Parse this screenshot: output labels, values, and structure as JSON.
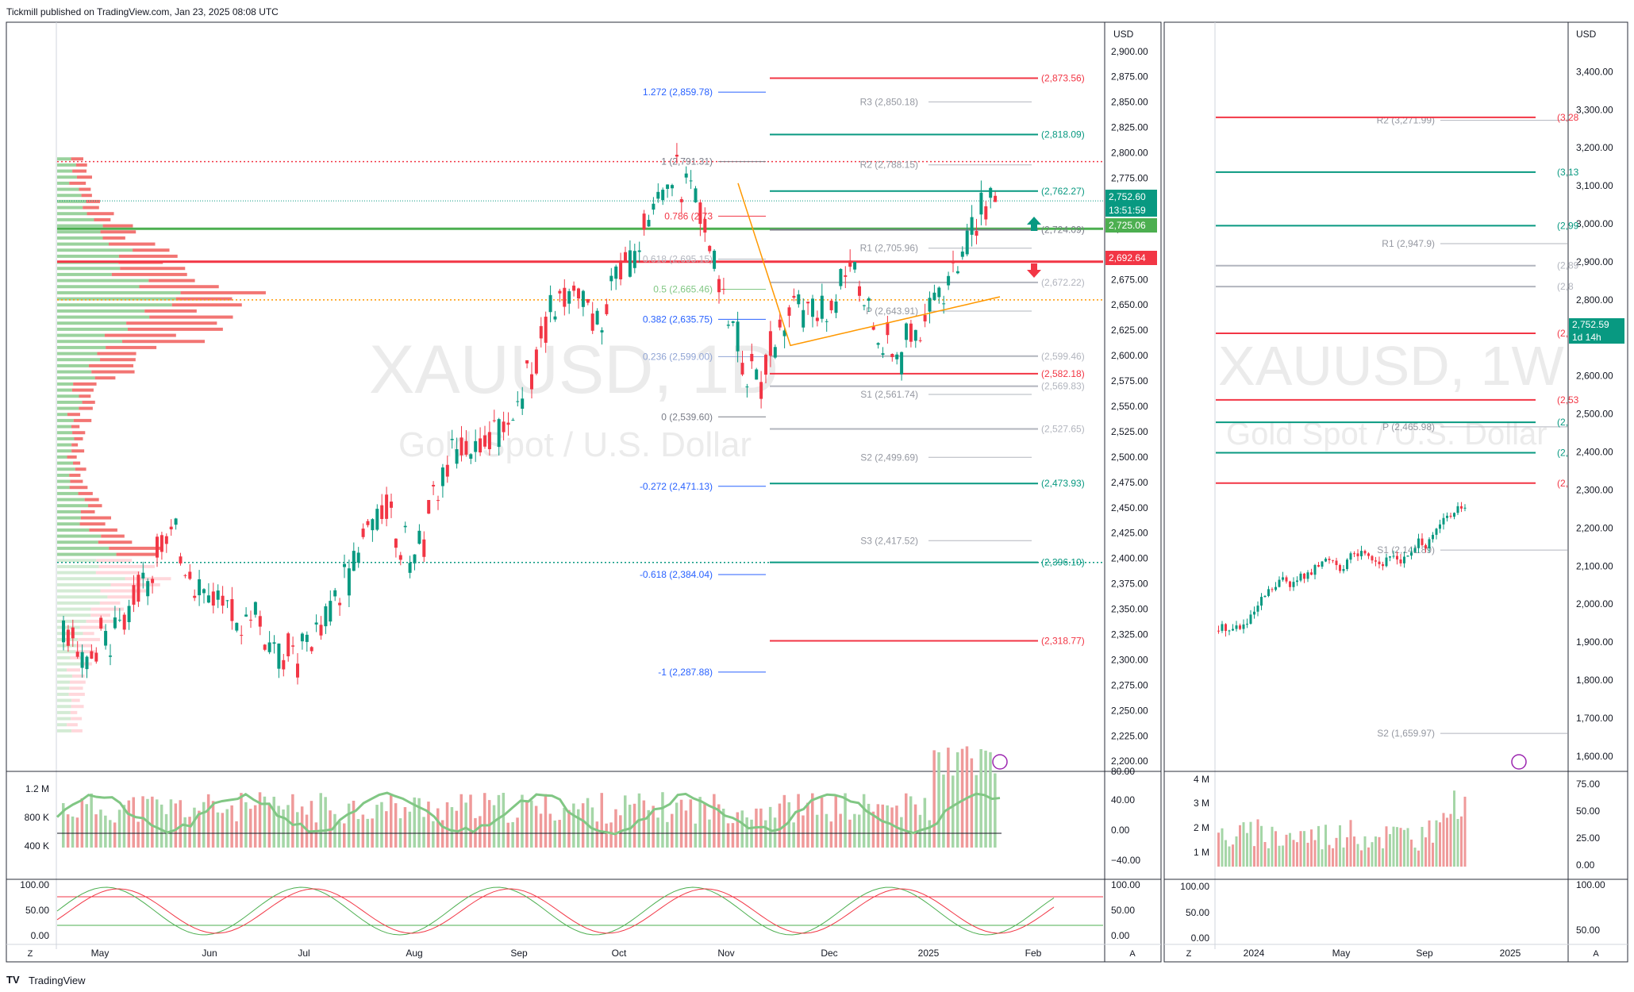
{
  "header": {
    "published_text": "Tickmill published on TradingView.com, Jan 23, 2025 08:08 UTC"
  },
  "footer": {
    "brand": "TradingView"
  },
  "panes": {
    "left": {
      "currency": "USD",
      "watermark_symbol": "XAUUSD, 1D",
      "watermark_name": "Gold Spot / U.S. Dollar",
      "price_ticks": [
        "2,900.00",
        "2,875.00",
        "2,850.00",
        "2,825.00",
        "2,800.00",
        "2,775.00",
        "2,750.00",
        "2,725.00",
        "2,700.00",
        "2,675.00",
        "2,650.00",
        "2,625.00",
        "2,600.00",
        "2,575.00",
        "2,550.00",
        "2,525.00",
        "2,500.00",
        "2,475.00",
        "2,450.00",
        "2,425.00",
        "2,400.00",
        "2,375.00",
        "2,350.00",
        "2,325.00",
        "2,300.00",
        "2,275.00",
        "2,250.00",
        "2,225.00",
        "2,200.00"
      ],
      "last_price": "2,752.60",
      "countdown": "13:51:59",
      "green_line_price": "2,725.06",
      "red_line_price": "2,692.64",
      "fib_levels": [
        {
          "label": "1.272 (2,859.78)",
          "price": 2859.78,
          "color": "#2962ff"
        },
        {
          "label": "1 (2,791.31)",
          "price": 2791.31,
          "color": "#787b86"
        },
        {
          "label": "0.786 (2,73",
          "price": 2737.5,
          "color": "#f23645"
        },
        {
          "label": "0.618 (2,695.15)",
          "price": 2695.15,
          "color": "#b2b5be"
        },
        {
          "label": "0.5 (2,665.46)",
          "price": 2665.46,
          "color": "#81c784"
        },
        {
          "label": "0.382 (2,635.75)",
          "price": 2635.75,
          "color": "#2962ff"
        },
        {
          "label": "0.236 (2,599.00)",
          "price": 2599.0,
          "color": "#90a4d4"
        },
        {
          "label": "0 (2,539.60)",
          "price": 2539.6,
          "color": "#787b86"
        },
        {
          "label": "-0.272 (2,471.13)",
          "price": 2471.13,
          "color": "#2962ff"
        },
        {
          "label": "-0.618 (2,384.04)",
          "price": 2384.04,
          "color": "#2962ff"
        },
        {
          "label": "-1 (2,287.88)",
          "price": 2287.88,
          "color": "#2962ff"
        }
      ],
      "pivot_levels": [
        {
          "label": "R3 (2,850.18)",
          "price": 2850.18
        },
        {
          "label": "R2 (2,788.15)",
          "price": 2788.15
        },
        {
          "label": "R1 (2,705.96)",
          "price": 2705.96
        },
        {
          "label": "P (2,643.91)",
          "price": 2643.91
        },
        {
          "label": "S1 (2,561.74)",
          "price": 2561.74
        },
        {
          "label": "S2 (2,499.69)",
          "price": 2499.69
        },
        {
          "label": "S3 (2,417.52)",
          "price": 2417.52
        }
      ],
      "sr_levels": [
        {
          "label": "(2,873.56)",
          "price": 2873.56,
          "color": "#f23645"
        },
        {
          "label": "(2,818.09)",
          "price": 2818.09,
          "color": "#089981"
        },
        {
          "label": "(2,762.27)",
          "price": 2762.27,
          "color": "#089981"
        },
        {
          "label": "(2,724.09)",
          "price": 2724.09,
          "color": "#787b86"
        },
        {
          "label": "(2,672.22)",
          "price": 2672.22,
          "color": "#b2b5be"
        },
        {
          "label": "(2,599.46)",
          "price": 2599.46,
          "color": "#b2b5be"
        },
        {
          "label": "(2,582.18)",
          "price": 2582.18,
          "color": "#f23645"
        },
        {
          "label": "(2,569.83)",
          "price": 2569.83,
          "color": "#b2b5be"
        },
        {
          "label": "(2,527.65)",
          "price": 2527.65,
          "color": "#b2b5be"
        },
        {
          "label": "(2,473.93)",
          "price": 2473.93,
          "color": "#089981"
        },
        {
          "label": "(2,396.10)",
          "price": 2396.1,
          "color": "#089981"
        },
        {
          "label": "(2,318.77)",
          "price": 2318.77,
          "color": "#f23645"
        }
      ],
      "volume_ticks": [
        "1.2 M",
        "800 K",
        "400 K"
      ],
      "osc_right_ticks": [
        "80.00",
        "40.00",
        "0.00",
        "−40.00"
      ],
      "stoch_ticks": [
        "100.00",
        "50.00",
        "0.00"
      ],
      "month_labels": [
        "May",
        "Jun",
        "Jul",
        "Aug",
        "Sep",
        "Oct",
        "Nov",
        "Dec",
        "2025",
        "Feb"
      ]
    },
    "right": {
      "currency": "USD",
      "watermark_symbol": "XAUUSD, 1W",
      "watermark_name": "Gold Spot / U.S. Dollar",
      "price_ticks": [
        "3,400.00",
        "3,300.00",
        "3,200.00",
        "3,100.00",
        "3,000.00",
        "2,900.00",
        "2,800.00",
        "2,700.00",
        "2,600.00",
        "2,500.00",
        "2,400.00",
        "2,300.00",
        "2,200.00",
        "2,100.00",
        "2,000.00",
        "1,900.00",
        "1,800.00",
        "1,700.00",
        "1,600.00"
      ],
      "last_price": "2,752.59",
      "countdown": "1d 14h",
      "pivot_levels": [
        {
          "label": "R2 (3,271.99)",
          "price": 3271.99
        },
        {
          "label": "R1 (2,947.9)",
          "price": 2947.9
        },
        {
          "label": "P (2,465.98)",
          "price": 2465.98
        },
        {
          "label": "S1 (2,141.89)",
          "price": 2141.89
        },
        {
          "label": "S2 (1,659.97)",
          "price": 1659.97
        }
      ],
      "level_labels": [
        {
          "label": "(3,28",
          "price": 3280,
          "color": "#f23645"
        },
        {
          "label": "(3,13",
          "price": 3136,
          "color": "#089981"
        },
        {
          "label": "(2,99",
          "price": 2995,
          "color": "#089981"
        },
        {
          "label": "(2,89",
          "price": 2890,
          "color": "#b2b5be"
        },
        {
          "label": "(2,8",
          "price": 2835,
          "color": "#b2b5be"
        },
        {
          "label": "(2,",
          "price": 2712,
          "color": "#f23645"
        },
        {
          "label": "(2,53",
          "price": 2537,
          "color": "#f23645"
        },
        {
          "label": "(2,",
          "price": 2478,
          "color": "#089981"
        },
        {
          "label": "(2,",
          "price": 2398,
          "color": "#089981"
        },
        {
          "label": "(2,",
          "price": 2318,
          "color": "#f23645"
        }
      ],
      "volume_ticks": [
        "4 M",
        "3 M",
        "2 M",
        "1 M"
      ],
      "osc_right_ticks": [
        "75.00",
        "50.00",
        "25.00",
        "0.00"
      ],
      "stoch_ticks": [
        "100.00",
        "50.00",
        "0.00"
      ],
      "stoch_right_ticks": [
        "100.00",
        "50.00"
      ],
      "month_labels": [
        "2024",
        "May",
        "Sep",
        "2025"
      ]
    }
  },
  "chart_data": [
    {
      "type": "candlestick",
      "title": "XAUUSD, 1D",
      "ylim": [
        2190,
        2910
      ],
      "x_range": [
        "2024-04-22",
        "2025-02-20"
      ],
      "closes_approx": [
        2330,
        2310,
        2300,
        2320,
        2310,
        2340,
        2360,
        2380,
        2400,
        2420,
        2410,
        2390,
        2370,
        2360,
        2340,
        2330,
        2350,
        2330,
        2310,
        2320,
        2300,
        2320,
        2340,
        2360,
        2380,
        2410,
        2440,
        2450,
        2430,
        2410,
        2400,
        2440,
        2480,
        2500,
        2510,
        2500,
        2510,
        2520,
        2540,
        2570,
        2600,
        2630,
        2650,
        2670,
        2660,
        2640,
        2650,
        2680,
        2700,
        2720,
        2740,
        2750,
        2780,
        2770,
        2740,
        2700,
        2660,
        2620,
        2590,
        2560,
        2600,
        2630,
        2650,
        2640,
        2630,
        2650,
        2680,
        2700,
        2650,
        2620,
        2610,
        2600,
        2620,
        2640,
        2650,
        2670,
        2700,
        2720,
        2740,
        2752.6
      ],
      "last": 2752.6
    },
    {
      "type": "candlestick",
      "title": "XAUUSD, 1W",
      "ylim": [
        1560,
        3480
      ],
      "x_range": [
        "2023-10-01",
        "2025-02-20"
      ],
      "last": 2752.59
    }
  ],
  "colors": {
    "up": "#089981",
    "down": "#f23645",
    "green_band": "#26a69a",
    "accent": "#2962ff",
    "orange_ma": "#ff9800"
  }
}
